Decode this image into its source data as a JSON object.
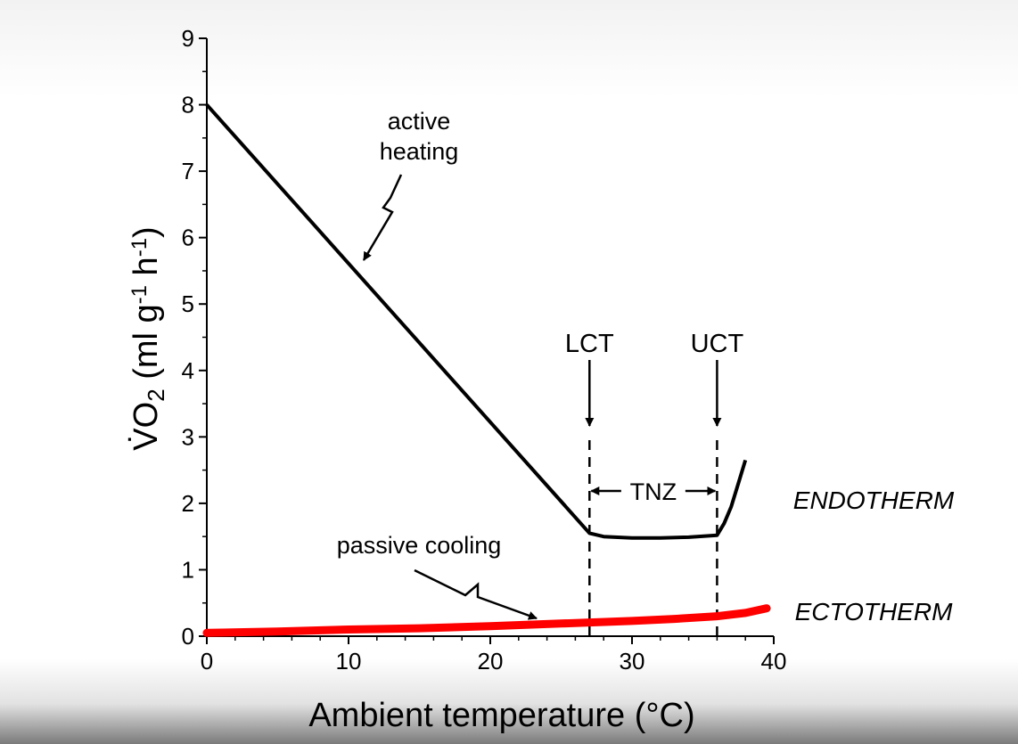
{
  "chart_data": {
    "type": "line",
    "title": "",
    "xlabel": "Ambient temperature (°C)",
    "ylabel_main": "V̇O",
    "ylabel_sub": "2",
    "ylabel_rest": " (ml g",
    "ylabel_exp1": "-1",
    "ylabel_mid": " h",
    "ylabel_exp2": "-1",
    "ylabel_close": ")",
    "xlim": [
      0,
      40
    ],
    "ylim": [
      0,
      9
    ],
    "x_ticks": [
      0,
      10,
      20,
      30,
      40
    ],
    "y_ticks": [
      0,
      1,
      2,
      3,
      4,
      5,
      6,
      7,
      8,
      9
    ],
    "grid": false,
    "series": [
      {
        "name": "ENDOTHERM",
        "color": "#000000",
        "x": [
          0,
          27,
          28,
          30,
          32,
          34,
          36,
          36.5,
          37,
          37.5,
          38
        ],
        "y": [
          8.0,
          1.55,
          1.5,
          1.48,
          1.48,
          1.49,
          1.52,
          1.7,
          1.95,
          2.3,
          2.65
        ]
      },
      {
        "name": "ECTOTHERM",
        "color": "#ff0000",
        "x": [
          0,
          5,
          10,
          15,
          20,
          25,
          30,
          33,
          36,
          38,
          39.5
        ],
        "y": [
          0.05,
          0.07,
          0.1,
          0.12,
          0.15,
          0.19,
          0.23,
          0.26,
          0.3,
          0.35,
          0.42
        ]
      }
    ],
    "annotations": {
      "active_heating_line1": "active",
      "active_heating_line2": "heating",
      "passive_cooling": "passive cooling",
      "lct": "LCT",
      "uct": "UCT",
      "tnz": "TNZ",
      "lct_x": 27,
      "uct_x": 36
    }
  }
}
